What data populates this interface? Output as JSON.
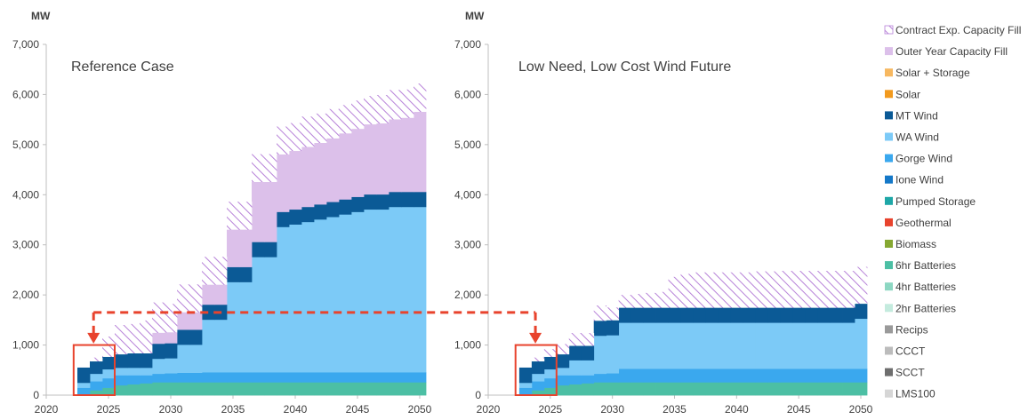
{
  "colors": {
    "contract_fill": "#b681d8",
    "outer_year": "#dcc0ea",
    "solar_storage": "#f7b860",
    "solar": "#f29a1e",
    "mt_wind": "#0b5a96",
    "wa_wind": "#7ccaf7",
    "gorge_wind": "#3aa8ee",
    "ione_wind": "#1478c8",
    "pumped_storage": "#1ea7a7",
    "geothermal": "#e8432d",
    "biomass": "#86a832",
    "batt6": "#4cbfa4",
    "batt4": "#8cd7c2",
    "batt2": "#c4ebde",
    "recips": "#9a9a9a",
    "ccct": "#bcbcbc",
    "scct": "#6e6e6e",
    "lms100": "#d6d6d6",
    "axis": "#bfbfbf",
    "annotation": "#e8432d"
  },
  "legend": [
    {
      "label": "Contract Exp. Capacity Fill",
      "color": "#b681d8",
      "hatched": true
    },
    {
      "label": "Outer Year Capacity Fill",
      "color": "#dcc0ea"
    },
    {
      "label": "Solar + Storage",
      "color": "#f7b860"
    },
    {
      "label": "Solar",
      "color": "#f29a1e"
    },
    {
      "label": "MT Wind",
      "color": "#0b5a96"
    },
    {
      "label": "WA Wind",
      "color": "#7ccaf7"
    },
    {
      "label": "Gorge Wind",
      "color": "#3aa8ee"
    },
    {
      "label": "Ione Wind",
      "color": "#1478c8"
    },
    {
      "label": "Pumped Storage",
      "color": "#1ea7a7"
    },
    {
      "label": "Geothermal",
      "color": "#e8432d"
    },
    {
      "label": "Biomass",
      "color": "#86a832"
    },
    {
      "label": "6hr Batteries",
      "color": "#4cbfa4"
    },
    {
      "label": "4hr Batteries",
      "color": "#8cd7c2"
    },
    {
      "label": "2hr Batteries",
      "color": "#c4ebde"
    },
    {
      "label": "Recips",
      "color": "#9a9a9a"
    },
    {
      "label": "CCCT",
      "color": "#bcbcbc"
    },
    {
      "label": "SCCT",
      "color": "#6e6e6e"
    },
    {
      "label": "LMS100",
      "color": "#d6d6d6"
    }
  ],
  "chart_data": [
    {
      "type": "area",
      "title": "Reference Case",
      "ylabel": "MW",
      "ylim": [
        0,
        7000
      ],
      "xlim": [
        2020,
        2050
      ],
      "xticks": [
        "2020",
        "2025",
        "2030",
        "2035",
        "2040",
        "2045",
        "2050"
      ],
      "yticks": [
        "0",
        "1,000",
        "2,000",
        "3,000",
        "4,000",
        "5,000",
        "6,000",
        "7,000"
      ],
      "stepped": true,
      "x": [
        2023,
        2024,
        2025,
        2026,
        2027,
        2028,
        2029,
        2030,
        2031,
        2032,
        2033,
        2034,
        2035,
        2036,
        2037,
        2038,
        2039,
        2040,
        2041,
        2042,
        2043,
        2044,
        2045,
        2046,
        2047,
        2048,
        2049,
        2050
      ],
      "series": [
        {
          "name": "6hr Batteries",
          "key": "batt6",
          "values": [
            0,
            100,
            150,
            200,
            220,
            240,
            260,
            260,
            260,
            260,
            260,
            260,
            260,
            260,
            260,
            260,
            260,
            260,
            260,
            260,
            260,
            260,
            260,
            260,
            260,
            260,
            260,
            260
          ]
        },
        {
          "name": "Gorge Wind",
          "key": "gorge_wind",
          "values": [
            150,
            180,
            190,
            200,
            180,
            160,
            170,
            180,
            190,
            190,
            200,
            200,
            200,
            200,
            200,
            200,
            200,
            200,
            200,
            200,
            200,
            200,
            200,
            200,
            200,
            200,
            200,
            200
          ]
        },
        {
          "name": "WA Wind",
          "key": "wa_wind",
          "values": [
            100,
            150,
            180,
            150,
            150,
            150,
            300,
            300,
            560,
            560,
            1050,
            1050,
            1800,
            1800,
            2300,
            2300,
            2900,
            2950,
            3000,
            3050,
            3100,
            3150,
            3200,
            3250,
            3250,
            3300,
            3300,
            3300
          ]
        },
        {
          "name": "MT Wind",
          "key": "mt_wind",
          "values": [
            300,
            250,
            250,
            270,
            290,
            290,
            300,
            300,
            300,
            300,
            300,
            300,
            300,
            300,
            300,
            300,
            300,
            300,
            300,
            300,
            300,
            300,
            300,
            300,
            300,
            300,
            300,
            300
          ]
        },
        {
          "name": "Outer Year Capacity Fill",
          "key": "outer_year",
          "values": [
            0,
            0,
            0,
            0,
            0,
            0,
            220,
            220,
            350,
            350,
            400,
            400,
            750,
            750,
            1200,
            1200,
            1150,
            1170,
            1200,
            1230,
            1270,
            1320,
            1360,
            1400,
            1420,
            1450,
            1480,
            1600
          ]
        },
        {
          "name": "Contract Exp. Capacity Fill",
          "key": "contract_fill",
          "hatched": true,
          "values": [
            0,
            70,
            400,
            580,
            580,
            650,
            600,
            560,
            550,
            550,
            550,
            550,
            550,
            550,
            550,
            550,
            550,
            550,
            600,
            580,
            580,
            560,
            560,
            560,
            560,
            580,
            560,
            560
          ]
        }
      ]
    },
    {
      "type": "area",
      "title": "Low Need, Low Cost Wind Future",
      "ylabel": "MW",
      "ylim": [
        0,
        7000
      ],
      "xlim": [
        2020,
        2050
      ],
      "xticks": [
        "2020",
        "2025",
        "2030",
        "2035",
        "2040",
        "2045",
        "2050"
      ],
      "yticks": [
        "0",
        "1,000",
        "2,000",
        "3,000",
        "4,000",
        "5,000",
        "6,000",
        "7,000"
      ],
      "stepped": true,
      "x": [
        2023,
        2024,
        2025,
        2026,
        2027,
        2028,
        2029,
        2030,
        2031,
        2032,
        2033,
        2034,
        2035,
        2036,
        2037,
        2038,
        2039,
        2040,
        2041,
        2042,
        2043,
        2044,
        2045,
        2046,
        2047,
        2048,
        2049,
        2050
      ],
      "series": [
        {
          "name": "6hr Batteries",
          "key": "batt6",
          "values": [
            0,
            100,
            150,
            200,
            220,
            240,
            260,
            260,
            260,
            260,
            260,
            260,
            260,
            260,
            260,
            260,
            260,
            260,
            260,
            260,
            260,
            260,
            260,
            260,
            260,
            260,
            260,
            260
          ]
        },
        {
          "name": "Gorge Wind",
          "key": "gorge_wind",
          "values": [
            150,
            180,
            190,
            200,
            180,
            160,
            170,
            180,
            270,
            270,
            270,
            270,
            270,
            270,
            270,
            270,
            270,
            270,
            270,
            270,
            270,
            270,
            270,
            270,
            270,
            270,
            270,
            270
          ]
        },
        {
          "name": "WA Wind",
          "key": "wa_wind",
          "values": [
            100,
            150,
            180,
            150,
            300,
            300,
            760,
            760,
            920,
            920,
            920,
            920,
            920,
            920,
            920,
            920,
            920,
            920,
            920,
            920,
            920,
            920,
            920,
            920,
            920,
            920,
            920,
            1000
          ]
        },
        {
          "name": "MT Wind",
          "key": "mt_wind",
          "values": [
            300,
            250,
            250,
            270,
            290,
            290,
            300,
            300,
            300,
            300,
            300,
            300,
            300,
            300,
            300,
            300,
            300,
            300,
            300,
            300,
            300,
            300,
            300,
            300,
            300,
            300,
            300,
            300
          ]
        },
        {
          "name": "Outer Year Capacity Fill",
          "key": "outer_year",
          "values": [
            0,
            0,
            0,
            0,
            0,
            0,
            0,
            0,
            0,
            0,
            0,
            0,
            0,
            0,
            0,
            0,
            0,
            0,
            0,
            0,
            0,
            0,
            0,
            0,
            0,
            0,
            0,
            0
          ]
        },
        {
          "name": "Contract Exp. Capacity Fill",
          "key": "contract_fill",
          "hatched": true,
          "values": [
            0,
            70,
            150,
            200,
            250,
            250,
            300,
            250,
            250,
            270,
            290,
            310,
            610,
            670,
            700,
            700,
            700,
            700,
            700,
            720,
            720,
            730,
            730,
            730,
            730,
            730,
            730,
            730
          ]
        }
      ]
    }
  ],
  "annotations": {
    "highlight_box": {
      "x_range": [
        2022.2,
        2025.5
      ],
      "y_range": [
        0,
        1000
      ]
    },
    "arrow": {
      "from_x": 2023.8,
      "to_x": 2023.8,
      "y": 1650,
      "arrow_tip_y": 1030
    }
  }
}
